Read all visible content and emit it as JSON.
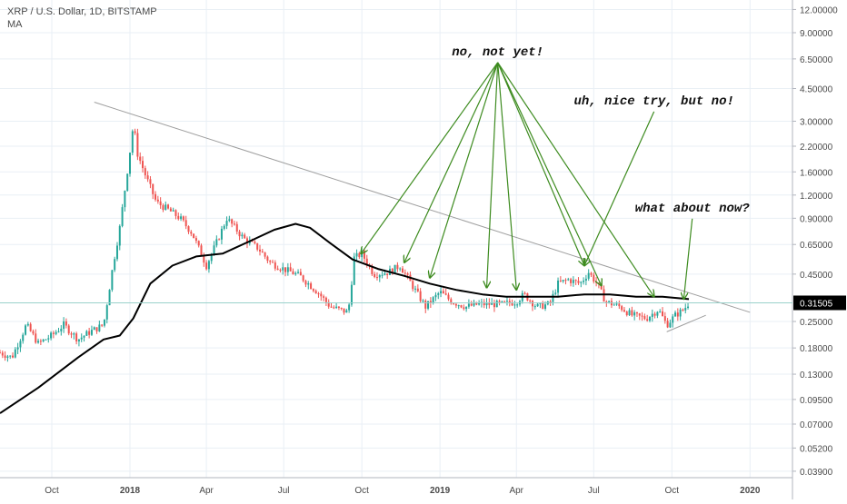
{
  "header": {
    "symbol_line": "XRP / U.S. Dollar, 1D, BITSTAMP",
    "indicator": "MA"
  },
  "colors": {
    "up": "#26a69a",
    "down": "#ef5350",
    "ma": "#000000",
    "trendline": "#9e9e9e",
    "annotation_arrow": "#3d8b1f",
    "price_tag_bg": "#000000",
    "grid": "#e9eff5"
  },
  "chart_data": {
    "type": "candlestick",
    "title": "XRP / U.S. Dollar, 1D, BITSTAMP",
    "y_scale": "log",
    "ylim": [
      0.036,
      13.5
    ],
    "xlim": [
      "2017-08-01",
      "2020-02-20"
    ],
    "y_ticks": [
      "12.00000",
      "9.00000",
      "6.50000",
      "4.50000",
      "3.00000",
      "2.20000",
      "1.60000",
      "1.20000",
      "0.90000",
      "0.65000",
      "0.45000",
      "0.25000",
      "0.18000",
      "0.13000",
      "0.09500",
      "0.07000",
      "0.05200",
      "0.03900"
    ],
    "x_ticks": [
      {
        "label": "Oct",
        "date": "2017-10-01",
        "bold": false
      },
      {
        "label": "2018",
        "date": "2018-01-01",
        "bold": true
      },
      {
        "label": "Apr",
        "date": "2018-04-01",
        "bold": false
      },
      {
        "label": "Jul",
        "date": "2018-07-01",
        "bold": false
      },
      {
        "label": "Oct",
        "date": "2018-10-01",
        "bold": false
      },
      {
        "label": "2019",
        "date": "2019-01-01",
        "bold": true
      },
      {
        "label": "Apr",
        "date": "2019-04-01",
        "bold": false
      },
      {
        "label": "Jul",
        "date": "2019-07-01",
        "bold": false
      },
      {
        "label": "Oct",
        "date": "2019-10-01",
        "bold": false
      },
      {
        "label": "2020",
        "date": "2020-01-01",
        "bold": true
      }
    ],
    "last_price": "0.31505",
    "last_price_value": 0.31505,
    "price_path": [
      [
        "2017-08-01",
        0.17
      ],
      [
        "2017-08-15",
        0.16
      ],
      [
        "2017-09-01",
        0.24
      ],
      [
        "2017-09-15",
        0.19
      ],
      [
        "2017-10-01",
        0.21
      ],
      [
        "2017-10-15",
        0.24
      ],
      [
        "2017-11-01",
        0.2
      ],
      [
        "2017-11-15",
        0.22
      ],
      [
        "2017-12-01",
        0.24
      ],
      [
        "2017-12-12",
        0.5
      ],
      [
        "2017-12-20",
        0.8
      ],
      [
        "2017-12-31",
        1.9
      ],
      [
        "2018-01-05",
        2.9
      ],
      [
        "2018-01-10",
        2.0
      ],
      [
        "2018-01-20",
        1.5
      ],
      [
        "2018-02-01",
        1.1
      ],
      [
        "2018-02-15",
        1.0
      ],
      [
        "2018-03-01",
        0.9
      ],
      [
        "2018-03-15",
        0.75
      ],
      [
        "2018-04-01",
        0.5
      ],
      [
        "2018-04-15",
        0.7
      ],
      [
        "2018-04-25",
        0.9
      ],
      [
        "2018-05-15",
        0.7
      ],
      [
        "2018-06-01",
        0.62
      ],
      [
        "2018-06-15",
        0.52
      ],
      [
        "2018-07-01",
        0.48
      ],
      [
        "2018-07-20",
        0.44
      ],
      [
        "2018-08-10",
        0.36
      ],
      [
        "2018-08-25",
        0.3
      ],
      [
        "2018-09-15",
        0.28
      ],
      [
        "2018-09-22",
        0.55
      ],
      [
        "2018-10-01",
        0.58
      ],
      [
        "2018-10-15",
        0.45
      ],
      [
        "2018-11-01",
        0.46
      ],
      [
        "2018-11-15",
        0.5
      ],
      [
        "2018-12-01",
        0.38
      ],
      [
        "2018-12-15",
        0.3
      ],
      [
        "2019-01-01",
        0.36
      ],
      [
        "2019-01-15",
        0.32
      ],
      [
        "2019-02-01",
        0.3
      ],
      [
        "2019-02-15",
        0.31
      ],
      [
        "2019-03-01",
        0.31
      ],
      [
        "2019-03-15",
        0.31
      ],
      [
        "2019-04-01",
        0.32
      ],
      [
        "2019-04-10",
        0.35
      ],
      [
        "2019-04-25",
        0.3
      ],
      [
        "2019-05-10",
        0.31
      ],
      [
        "2019-05-20",
        0.4
      ],
      [
        "2019-06-01",
        0.42
      ],
      [
        "2019-06-15",
        0.4
      ],
      [
        "2019-06-25",
        0.46
      ],
      [
        "2019-07-05",
        0.4
      ],
      [
        "2019-07-15",
        0.32
      ],
      [
        "2019-08-01",
        0.3
      ],
      [
        "2019-08-15",
        0.27
      ],
      [
        "2019-09-01",
        0.26
      ],
      [
        "2019-09-15",
        0.29
      ],
      [
        "2019-09-25",
        0.24
      ],
      [
        "2019-10-05",
        0.27
      ],
      [
        "2019-10-15",
        0.29
      ],
      [
        "2019-10-21",
        0.31505
      ]
    ],
    "moving_average": [
      [
        "2017-08-01",
        0.08
      ],
      [
        "2017-09-15",
        0.11
      ],
      [
        "2017-11-01",
        0.16
      ],
      [
        "2017-12-01",
        0.2
      ],
      [
        "2017-12-20",
        0.21
      ],
      [
        "2018-01-05",
        0.26
      ],
      [
        "2018-01-25",
        0.4
      ],
      [
        "2018-02-20",
        0.5
      ],
      [
        "2018-03-20",
        0.56
      ],
      [
        "2018-04-20",
        0.58
      ],
      [
        "2018-05-20",
        0.67
      ],
      [
        "2018-06-20",
        0.78
      ],
      [
        "2018-07-15",
        0.84
      ],
      [
        "2018-08-01",
        0.8
      ],
      [
        "2018-08-25",
        0.66
      ],
      [
        "2018-09-20",
        0.54
      ],
      [
        "2018-10-20",
        0.48
      ],
      [
        "2018-11-20",
        0.44
      ],
      [
        "2018-12-20",
        0.4
      ],
      [
        "2019-01-20",
        0.37
      ],
      [
        "2019-02-20",
        0.35
      ],
      [
        "2019-03-20",
        0.34
      ],
      [
        "2019-04-20",
        0.34
      ],
      [
        "2019-05-20",
        0.34
      ],
      [
        "2019-06-20",
        0.35
      ],
      [
        "2019-07-20",
        0.35
      ],
      [
        "2019-08-20",
        0.34
      ],
      [
        "2019-09-20",
        0.34
      ],
      [
        "2019-10-21",
        0.33
      ]
    ],
    "trendlines": [
      {
        "name": "descending",
        "from": [
          "2017-11-20",
          3.8
        ],
        "to": [
          "2020-01-01",
          0.28
        ]
      },
      {
        "name": "ascending",
        "from": [
          "2019-09-25",
          0.22
        ],
        "to": [
          "2019-11-10",
          0.27
        ]
      }
    ],
    "annotations": [
      {
        "text": "no, not yet!",
        "at": [
          "2019-03-10",
          6.8
        ],
        "targets": [
          [
            "2018-09-30",
            0.58
          ],
          [
            "2018-11-20",
            0.52
          ],
          [
            "2018-12-20",
            0.43
          ],
          [
            "2019-02-25",
            0.38
          ],
          [
            "2019-04-01",
            0.37
          ],
          [
            "2019-06-20",
            0.5
          ],
          [
            "2019-07-10",
            0.39
          ],
          [
            "2019-09-10",
            0.34
          ]
        ]
      },
      {
        "text": "uh, nice try, but no!",
        "at": [
          "2019-09-10",
          3.7
        ],
        "targets": [
          [
            "2019-06-20",
            0.5
          ]
        ]
      },
      {
        "text": "what about now?",
        "at": [
          "2019-10-25",
          0.98
        ],
        "targets": [
          [
            "2019-10-15",
            0.33
          ]
        ]
      }
    ]
  }
}
